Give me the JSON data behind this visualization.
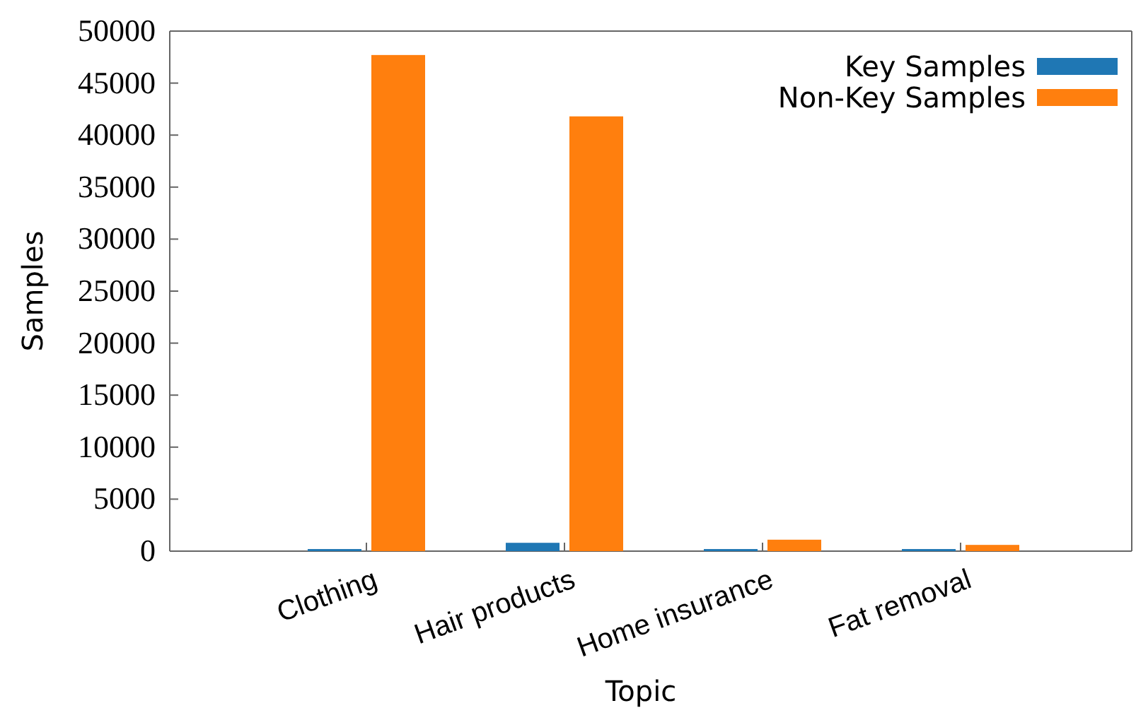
{
  "chart_data": {
    "type": "bar",
    "xlabel": "Topic",
    "ylabel": "Samples",
    "categories": [
      "Clothing",
      "Hair products",
      "Home insurance",
      "Fat removal"
    ],
    "series": [
      {
        "name": "Key Samples",
        "color": "#1f77b4",
        "values": [
          200,
          800,
          200,
          200
        ]
      },
      {
        "name": "Non-Key Samples",
        "color": "#ff7f0e",
        "values": [
          47700,
          41800,
          1100,
          600
        ]
      }
    ],
    "ylim": [
      0,
      50000
    ],
    "yticks": [
      0,
      5000,
      10000,
      15000,
      20000,
      25000,
      30000,
      35000,
      40000,
      45000,
      50000
    ],
    "grid": false,
    "legend": "top right"
  }
}
